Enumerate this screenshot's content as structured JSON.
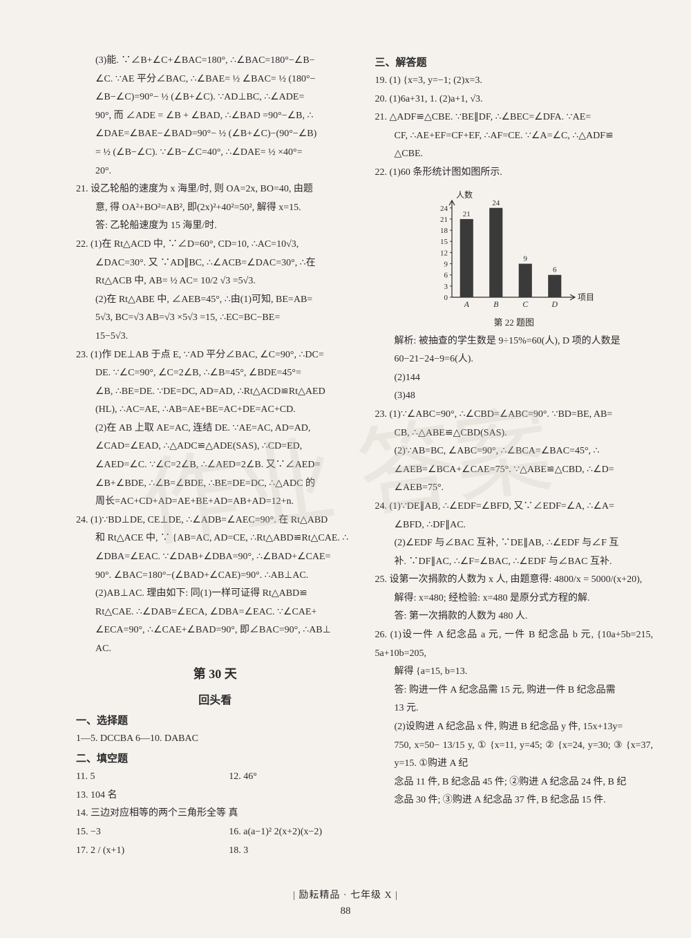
{
  "left": {
    "p20_3": "(3)能. ∵∠B+∠C+∠BAC=180°, ∴∠BAC=180°−∠B−",
    "p20_3b": "∠C. ∵AE 平分∠BAC, ∴∠BAE= ½ ∠BAC= ½ (180°−",
    "p20_3c": "∠B−∠C)=90°− ½ (∠B+∠C). ∵AD⊥BC, ∴∠ADE=",
    "p20_3d": "90°,  而 ∠ADE = ∠B + ∠BAD, ∴∠BAD =90°−∠B, ∴",
    "p20_3e": "∠DAE=∠BAE−∠BAD=90°− ½ (∠B+∠C)−(90°−∠B)",
    "p20_3f": "= ½ (∠B−∠C). ∵∠B−∠C=40°, ∴∠DAE= ½ ×40°=",
    "p20_3g": "20°.",
    "p21": "21. 设乙轮船的速度为 x 海里/时, 则 OA=2x, BO=40, 由题",
    "p21b": "意, 得 OA²+BO²=AB², 即(2x)²+40²=50², 解得 x=15.",
    "p21c": "答: 乙轮船速度为 15 海里/时.",
    "p22_1": "22. (1)在 Rt△ACD 中, ∵∠D=60°, CD=10, ∴AC=10√3,",
    "p22_1b": "∠DAC=30°. 又 ∵AD∥BC, ∴∠ACB=∠DAC=30°, ∴在",
    "p22_1c": "Rt△ACB 中, AB= ½ AC= 10/2 √3 =5√3.",
    "p22_2": "(2)在 Rt△ABE 中, ∠AEB=45°, ∴由(1)可知, BE=AB=",
    "p22_2b": "5√3, BC=√3 AB=√3 ×5√3 =15, ∴EC=BC−BE=",
    "p22_2c": "15−5√3.",
    "p23_1": "23. (1)作 DE⊥AB 于点 E, ∵AD 平分∠BAC, ∠C=90°, ∴DC=",
    "p23_1b": "DE.  ∵∠C=90°, ∠C=2∠B, ∴∠B=45°, ∠BDE=45°=",
    "p23_1c": "∠B, ∴BE=DE. ∵DE=DC, AD=AD, ∴Rt△ACD≌Rt△AED",
    "p23_1d": "(HL), ∴AC=AE, ∴AB=AE+BE=AC+DE=AC+CD.",
    "p23_2": "(2)在 AB 上取 AE=AC, 连结 DE. ∵AE=AC, AD=AD,",
    "p23_2b": "∠CAD=∠EAD, ∴△ADC≌△ADE(SAS), ∴CD=ED,",
    "p23_2c": "∠AED=∠C. ∵∠C=2∠B, ∴∠AED=2∠B. 又∵∠AED=",
    "p23_2d": "∠B+∠BDE, ∴∠B=∠BDE, ∴BE=DE=DC, ∴△ADC 的",
    "p23_2e": "周长=AC+CD+AD=AE+BE+AD=AB+AD=12+n.",
    "p24_1": "24. (1)∵BD⊥DE, CE⊥DE, ∴∠ADB=∠AEC=90°. 在 Rt△ABD",
    "p24_1b": "和 Rt△ACE 中, ∵ {AB=AC, AD=CE,  ∴Rt△ABD≌Rt△CAE. ∴",
    "p24_1c": "∠DBA=∠EAC. ∵∠DAB+∠DBA=90°, ∴∠BAD+∠CAE=",
    "p24_1d": "90°. ∠BAC=180°−(∠BAD+∠CAE)=90°. ∴AB⊥AC.",
    "p24_2": "(2)AB⊥AC. 理由如下: 同(1)一样可证得 Rt△ABD≌",
    "p24_2b": "Rt△CAE. ∴∠DAB=∠ECA, ∠DBA=∠EAC. ∵∠CAE+",
    "p24_2c": "∠ECA=90°, ∴∠CAE+∠BAD=90°, 即∠BAC=90°, ∴AB⊥",
    "p24_2d": "AC.",
    "day30": "第 30 天",
    "day30sub": "回头看",
    "sec1": "一、选择题",
    "mc": "1—5. DCCBA   6—10. DABAC",
    "sec2": "二、填空题",
    "fb11": "11. 5",
    "fb12": "12. 46°",
    "fb13": "13. 104 名",
    "fb14": "14. 三边对应相等的两个三角形全等   真",
    "fb15": "15. −3",
    "fb16": "16. a(a−1)²  2(x+2)(x−2)",
    "fb17": "17.  2 / (x+1)",
    "fb18": "18. 3"
  },
  "right": {
    "sec3": "三、解答题",
    "p19": "19. (1) {x=3, y=−1;    (2)x=3.",
    "p20": "20. (1)6a+31, 1.  (2)a+1, √3.",
    "p21": "21. △ADF≌△CBE. ∵BE∥DF, ∴∠BEC=∠DFA. ∵AE=",
    "p21b": "CF, ∴AE+EF=CF+EF, ∴AF=CE. ∵∠A=∠C, ∴△ADF≌",
    "p21c": "△CBE.",
    "p22_1": "22. (1)60  条形统计图如图所示.",
    "chart": {
      "y_ticks": [
        0,
        3,
        6,
        9,
        12,
        15,
        18,
        21,
        24
      ],
      "categories": [
        "A",
        "B",
        "C",
        "D"
      ],
      "values": [
        21,
        24,
        9,
        6
      ],
      "bar_labels": [
        "21",
        "24",
        "9",
        "6"
      ],
      "bar_color": "#3a3a3a",
      "bg": "#f5f2ee",
      "axis_color": "#2a2a2a",
      "xlabel": "项目",
      "ylabel": "人数",
      "title_fontsize": 12,
      "bar_width": 0.45,
      "ylim": [
        0,
        26
      ],
      "caption": "第 22 题图"
    },
    "p22_2": "解析: 被抽查的学生数是 9÷15%=60(人), D 项的人数是",
    "p22_2b": "60−21−24−9=6(人).",
    "p22_3": "(2)144",
    "p22_4": "(3)48",
    "p23_1": "23. (1)∵∠ABC=90°, ∴∠CBD=∠ABC=90°. ∵BD=BE, AB=",
    "p23_1b": "CB, ∴△ABE≌△CBD(SAS).",
    "p23_2": "(2)∵AB=BC, ∠ABC=90°, ∴∠BCA=∠BAC=45°, ∴",
    "p23_2b": "∠AEB=∠BCA+∠CAE=75°. ∵△ABE≌△CBD, ∴∠D=",
    "p23_2c": "∠AEB=75°.",
    "p24_1": "24. (1)∵DE∥AB, ∴∠EDF=∠BFD, 又∵∠EDF=∠A, ∴∠A=",
    "p24_1b": "∠BFD, ∴DF∥AC.",
    "p24_2": "(2)∠EDF 与∠BAC 互补, ∵DE∥AB, ∴∠EDF 与∠F 互",
    "p24_2b": "补. ∵DF∥AC, ∴∠F=∠BAC, ∴∠EDF 与∠BAC 互补.",
    "p25": "25. 设第一次捐款的人数为 x 人, 由题意得: 4800/x = 5000/(x+20),",
    "p25b": "解得: x=480; 经检验: x=480 是原分式方程的解.",
    "p25c": "答: 第一次捐款的人数为 480 人.",
    "p26_1": "26. (1)设一件 A 纪念品 a 元, 一件 B 纪念品 b 元, {10a+5b=215, 5a+10b=205,",
    "p26_1b": "解得 {a=15, b=13.",
    "p26_1c": "答: 购进一件 A 纪念品需 15 元, 购进一件 B 纪念品需",
    "p26_1d": "13 元.",
    "p26_2": "(2)设购进 A 纪念品 x 件, 购进 B 纪念品 y 件, 15x+13y=",
    "p26_2b": "750, x=50− 13/15 y, ① {x=11, y=45; ② {x=24, y=30; ③ {x=37, y=15. ①购进 A 纪",
    "p26_2c": "念品 11 件, B 纪念品 45 件; ②购进 A 纪念品 24 件, B 纪",
    "p26_2d": "念品 30 件; ③购进 A 纪念品 37 件, B 纪念品 15 件."
  },
  "footer": {
    "brand": "| 励耘精品 · 七年级 X |",
    "page": "88"
  },
  "watermarks": {
    "big": "作业  答案",
    "small1": "练",
    "small2": "习"
  }
}
